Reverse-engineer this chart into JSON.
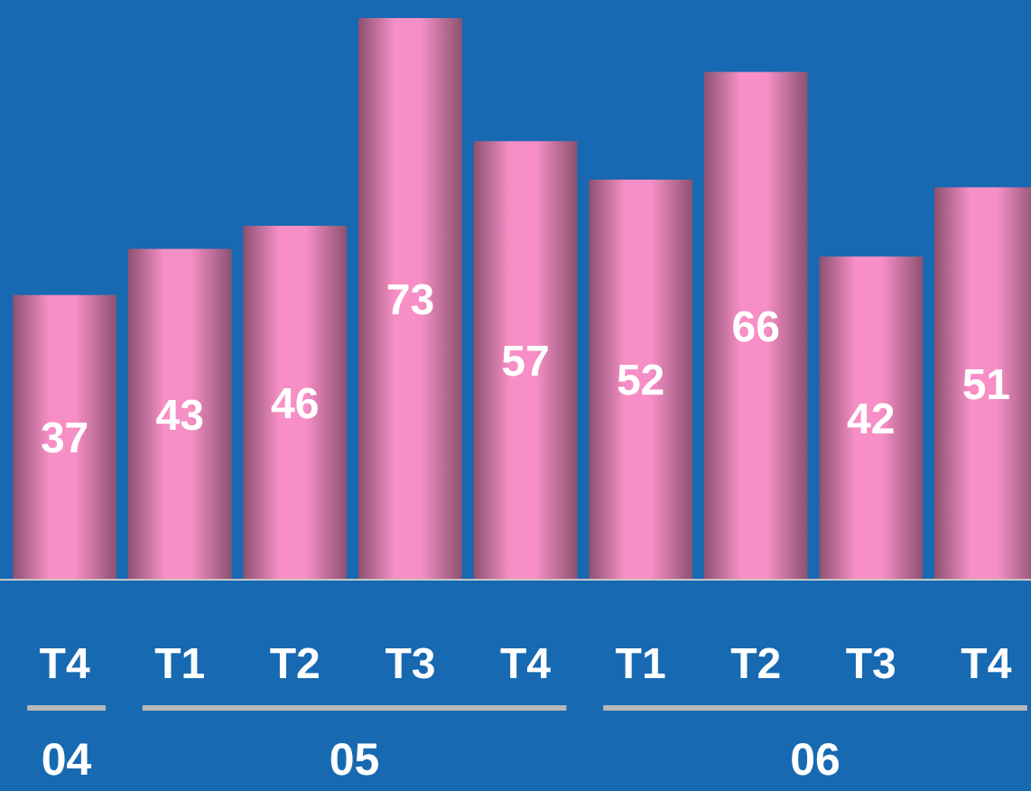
{
  "chart_data": {
    "type": "bar",
    "categories": [
      "T4",
      "T1",
      "T2",
      "T3",
      "T4",
      "T1",
      "T2",
      "T3",
      "T4"
    ],
    "values": [
      37,
      43,
      46,
      73,
      57,
      52,
      66,
      42,
      51
    ],
    "color": "#f78fc6",
    "data_labels": true,
    "annotations": [
      "04",
      "05",
      "06"
    ]
  }
}
